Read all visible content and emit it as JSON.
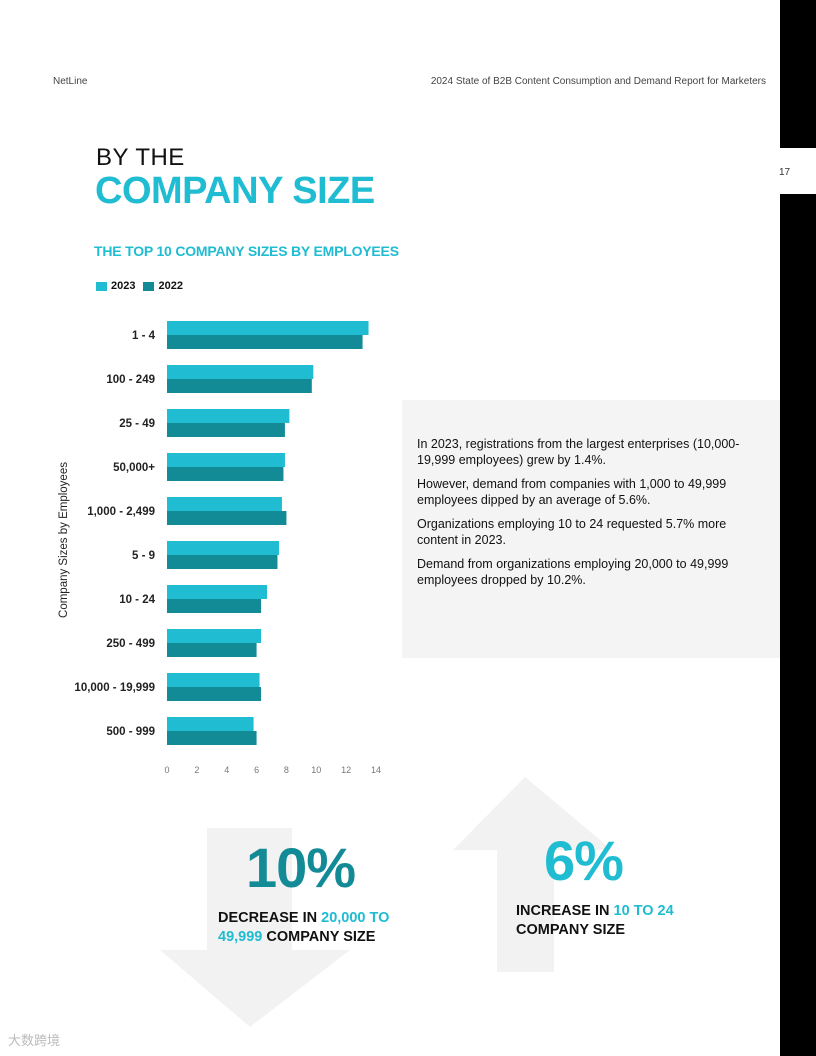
{
  "header": {
    "brand": "NetLine",
    "report_title": "2024 State of B2B Content Consumption and Demand Report for Marketers",
    "page_number": "17"
  },
  "title": {
    "line1": "BY THE",
    "line2": "COMPANY SIZE"
  },
  "chart_title": "THE TOP 10 COMPANY SIZES BY EMPLOYEES",
  "colors": {
    "series_2023": "#1fbcd2",
    "series_2022": "#138b97",
    "accent": "#1fbcd2"
  },
  "chart_data": {
    "type": "bar",
    "orientation": "horizontal",
    "title": "THE TOP 10 COMPANY SIZES BY EMPLOYEES",
    "ylabel": "Company Sizes by Employees",
    "xlabel": "",
    "categories": [
      "1 - 4",
      "100 - 249",
      "25 - 49",
      "50,000+",
      "1,000 - 2,499",
      "5 - 9",
      "10 - 24",
      "250 - 499",
      "10,000 - 19,999",
      "500 - 999"
    ],
    "series": [
      {
        "name": "2023",
        "values": [
          13.5,
          9.8,
          8.2,
          7.9,
          7.7,
          7.5,
          6.7,
          6.3,
          6.2,
          5.8
        ]
      },
      {
        "name": "2022",
        "values": [
          13.1,
          9.7,
          7.9,
          7.8,
          8.0,
          7.4,
          6.3,
          6.0,
          6.3,
          6.0
        ]
      }
    ],
    "xlim": [
      0,
      14
    ],
    "xticks": [
      "0",
      "2",
      "4",
      "6",
      "8",
      "10",
      "12",
      "14"
    ],
    "legend_position": "top-left",
    "grid": false
  },
  "info_panel": {
    "paragraphs": [
      "In 2023, registrations from the largest enterprises (10,000-19,999 employees) grew by 1.4%.",
      "However, demand from companies with 1,000 to 49,999 employees dipped by an average of 5.6%.",
      "Organizations employing 10 to 24 requested 5.7% more content in 2023.",
      "Demand from organizations employing 20,000 to 49,999 employees dropped by 10.2%."
    ]
  },
  "stats": [
    {
      "value": "10%",
      "caption_pre": "DECREASE IN ",
      "caption_highlight": "20,000 TO 49,999",
      "caption_post": " COMPANY SIZE",
      "direction": "down-arrow-icon"
    },
    {
      "value": "6%",
      "caption_pre": "INCREASE IN ",
      "caption_highlight": "10 TO 24",
      "caption_post": " COMPANY SIZE",
      "direction": "up-arrow-icon"
    }
  ],
  "watermark": "大数跨境"
}
